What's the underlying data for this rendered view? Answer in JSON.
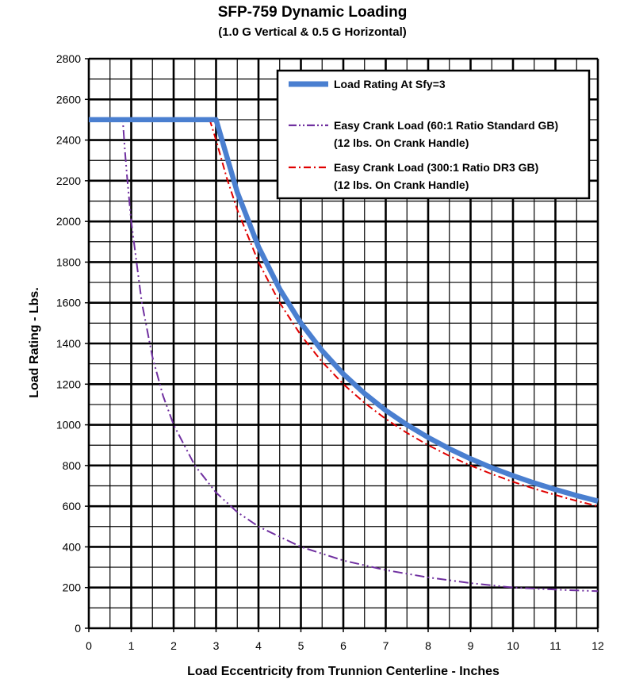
{
  "chart_data": {
    "type": "line",
    "title": "SFP-759 Dynamic Loading",
    "subtitle": "(1.0 G Vertical & 0.5 G Horizontal)",
    "xlabel": "Load Eccentricity from Trunnion Centerline - Inches",
    "ylabel": "Load Rating - Lbs.",
    "xlim": [
      0,
      12
    ],
    "ylim": [
      0,
      2800
    ],
    "x_ticks": [
      "0",
      "1",
      "2",
      "3",
      "4",
      "5",
      "6",
      "7",
      "8",
      "9",
      "10",
      "11",
      "12"
    ],
    "y_ticks": [
      "0",
      "200",
      "400",
      "600",
      "800",
      "1000",
      "1200",
      "1400",
      "1600",
      "1800",
      "2000",
      "2200",
      "2400",
      "2600",
      "2800"
    ],
    "grid": true,
    "legend_position": "top-right",
    "series": [
      {
        "name": "Load Rating At Sfy=3",
        "color": "#4a7fd0",
        "style": "solid",
        "x": [
          0,
          1,
          2,
          3,
          3.5,
          4,
          4.5,
          5,
          5.5,
          6,
          6.5,
          7,
          7.5,
          8,
          8.5,
          9,
          9.5,
          10,
          10.5,
          11,
          11.5,
          12
        ],
        "y": [
          2500,
          2500,
          2500,
          2500,
          2143,
          1875,
          1667,
          1500,
          1364,
          1250,
          1154,
          1071,
          1000,
          938,
          882,
          833,
          789,
          750,
          714,
          682,
          652,
          625
        ]
      },
      {
        "name": "Easy Crank Load (60:1 Ratio Standard GB)",
        "name_line2": "(12 lbs. On Crank Handle)",
        "color": "#7030a0",
        "style": "dash-dot-dot",
        "x": [
          0,
          0.8,
          0.85,
          0.9,
          1,
          1.25,
          1.5,
          1.75,
          2,
          2.5,
          3,
          3.5,
          4,
          5,
          6,
          7,
          8,
          9,
          10,
          11,
          12
        ],
        "y": [
          2500,
          2500,
          2350,
          2222,
          2000,
          1600,
          1333,
          1143,
          1000,
          800,
          667,
          571,
          500,
          400,
          333,
          286,
          250,
          222,
          200,
          190,
          182
        ]
      },
      {
        "name": "Easy Crank Load (300:1 Ratio DR3 GB)",
        "name_line2": "(12 lbs. On Crank Handle)",
        "color": "#e00000",
        "style": "dash-dot",
        "x": [
          0,
          1,
          2,
          2.85,
          3,
          3.25,
          3.5,
          4,
          4.5,
          5,
          5.5,
          6,
          6.5,
          7,
          7.5,
          8,
          8.5,
          9,
          9.5,
          10,
          10.5,
          11,
          11.5,
          12
        ],
        "y": [
          2500,
          2500,
          2500,
          2500,
          2400,
          2215,
          2057,
          1800,
          1600,
          1440,
          1309,
          1200,
          1108,
          1029,
          960,
          900,
          847,
          800,
          758,
          720,
          686,
          655,
          626,
          600
        ]
      }
    ]
  }
}
